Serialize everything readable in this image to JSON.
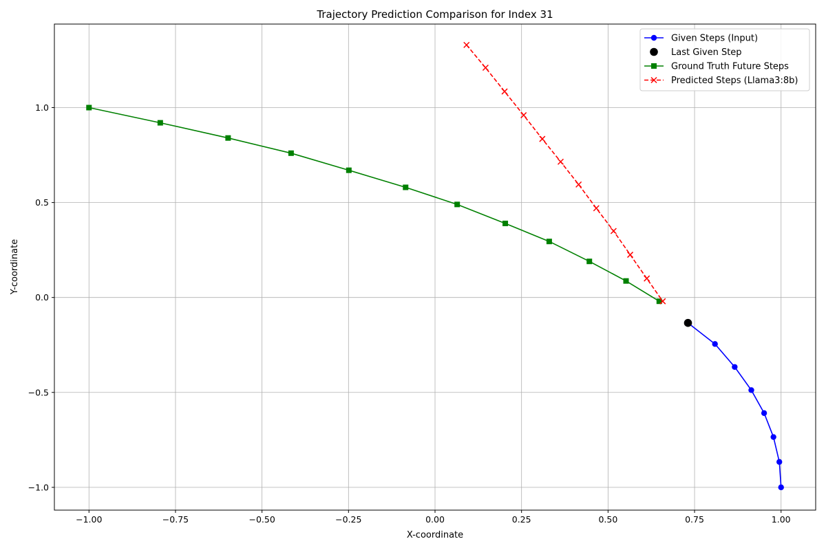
{
  "chart_data": {
    "type": "line",
    "title": "Trajectory Prediction Comparison for Index 31",
    "xlabel": "X-coordinate",
    "ylabel": "Y-coordinate",
    "xlim": [
      -1.1,
      1.1
    ],
    "ylim": [
      -1.12,
      1.44
    ],
    "xticks": [
      -1.0,
      -0.75,
      -0.5,
      -0.25,
      0.0,
      0.25,
      0.5,
      0.75,
      1.0
    ],
    "xtick_labels": [
      "−1.00",
      "−0.75",
      "−0.50",
      "−0.25",
      "0.00",
      "0.25",
      "0.50",
      "0.75",
      "1.00"
    ],
    "yticks": [
      -1.0,
      -0.5,
      0.0,
      0.5,
      1.0
    ],
    "ytick_labels": [
      "−1.0",
      "−0.5",
      "0.0",
      "0.5",
      "1.0"
    ],
    "grid": true,
    "legend_position": "top-right",
    "series": [
      {
        "name": "Given Steps (Input)",
        "color": "#0000ff",
        "marker": "circle",
        "linestyle": "solid",
        "x": [
          1.0,
          0.995,
          0.978,
          0.951,
          0.914,
          0.866,
          0.809,
          0.731
        ],
        "y": [
          -1.0,
          -0.866,
          -0.735,
          -0.609,
          -0.488,
          -0.366,
          -0.245,
          -0.134
        ]
      },
      {
        "name": "Last Given Step",
        "color": "#000000",
        "marker": "circle-large",
        "linestyle": "none",
        "x": [
          0.731
        ],
        "y": [
          -0.134
        ]
      },
      {
        "name": "Ground Truth Future Steps",
        "color": "#008000",
        "marker": "square",
        "linestyle": "solid",
        "x": [
          -1.0,
          -0.794,
          -0.598,
          -0.416,
          -0.249,
          -0.085,
          0.064,
          0.203,
          0.33,
          0.446,
          0.552,
          0.648
        ],
        "y": [
          1.0,
          0.92,
          0.84,
          0.76,
          0.67,
          0.58,
          0.49,
          0.39,
          0.295,
          0.19,
          0.087,
          -0.02
        ]
      },
      {
        "name": "Predicted Steps (Llama3:8b)",
        "color": "#ff0000",
        "marker": "x",
        "linestyle": "dashed",
        "x": [
          0.091,
          0.146,
          0.201,
          0.256,
          0.31,
          0.363,
          0.415,
          0.466,
          0.516,
          0.564,
          0.612,
          0.658
        ],
        "y": [
          1.33,
          1.21,
          1.085,
          0.96,
          0.835,
          0.715,
          0.595,
          0.47,
          0.35,
          0.225,
          0.1,
          -0.02
        ]
      }
    ]
  }
}
